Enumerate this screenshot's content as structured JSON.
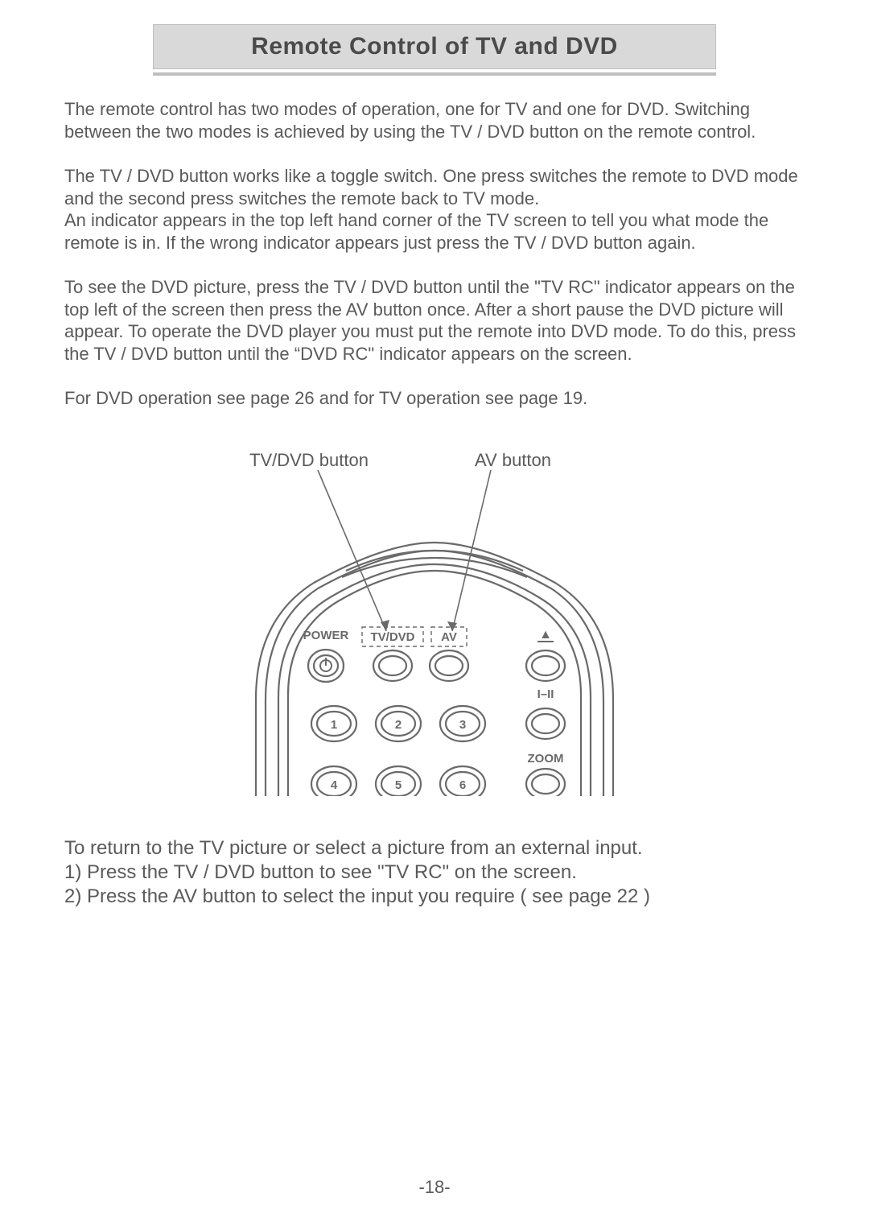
{
  "title": "Remote Control of TV and DVD",
  "paras": {
    "p1": "The remote control has two modes of operation, one for TV and one for DVD. Switching between the two modes is achieved by  using the TV / DVD button on the remote control.",
    "p2": "The TV / DVD button works like a toggle switch. One press switches the remote to DVD mode and the second press switches the remote back to TV mode.",
    "p3": "An indicator appears in the top left hand corner of the TV screen to tell you what mode the remote is in. If the wrong indicator appears just press the TV / DVD button again.",
    "p4": "To see the DVD picture, press the TV / DVD button until the \"TV RC\" indicator appears on the top left of the screen then press the AV button once. After a short pause the  DVD picture will appear. To operate the DVD player you must put the remote into DVD mode. To do this, press the TV / DVD button until the “DVD RC\" indicator appears on the screen.",
    "p5": "For DVD operation see page 26 and for TV operation see page 19.",
    "p6": "To return to the TV picture or select a picture from an external input.",
    "p7": "1) Press the TV / DVD button to see \"TV RC\" on the screen.",
    "p8": "2) Press the AV button to select the input you require ( see page 22 )"
  },
  "labels": {
    "tvdvd": "TV/DVD button",
    "av": "AV button"
  },
  "remote": {
    "power_label": "POWER",
    "tvdvd_label": "TV/DVD",
    "av_label": "AV",
    "eject_symbol": "▲",
    "i_ii": "I–II",
    "zoom": "ZOOM",
    "nums": [
      "1",
      "2",
      "3",
      "4",
      "5",
      "6"
    ]
  },
  "page_number": "-18-",
  "colors": {
    "text": "#5a5a5a",
    "title_bg": "#d9d9d9",
    "title_border": "#bfbfbf",
    "stroke": "#6a6a6a"
  },
  "svg_style": {
    "stroke_width": 2.2,
    "dash": "5,4",
    "label_fontsize": 15,
    "num_fontsize": 15
  }
}
